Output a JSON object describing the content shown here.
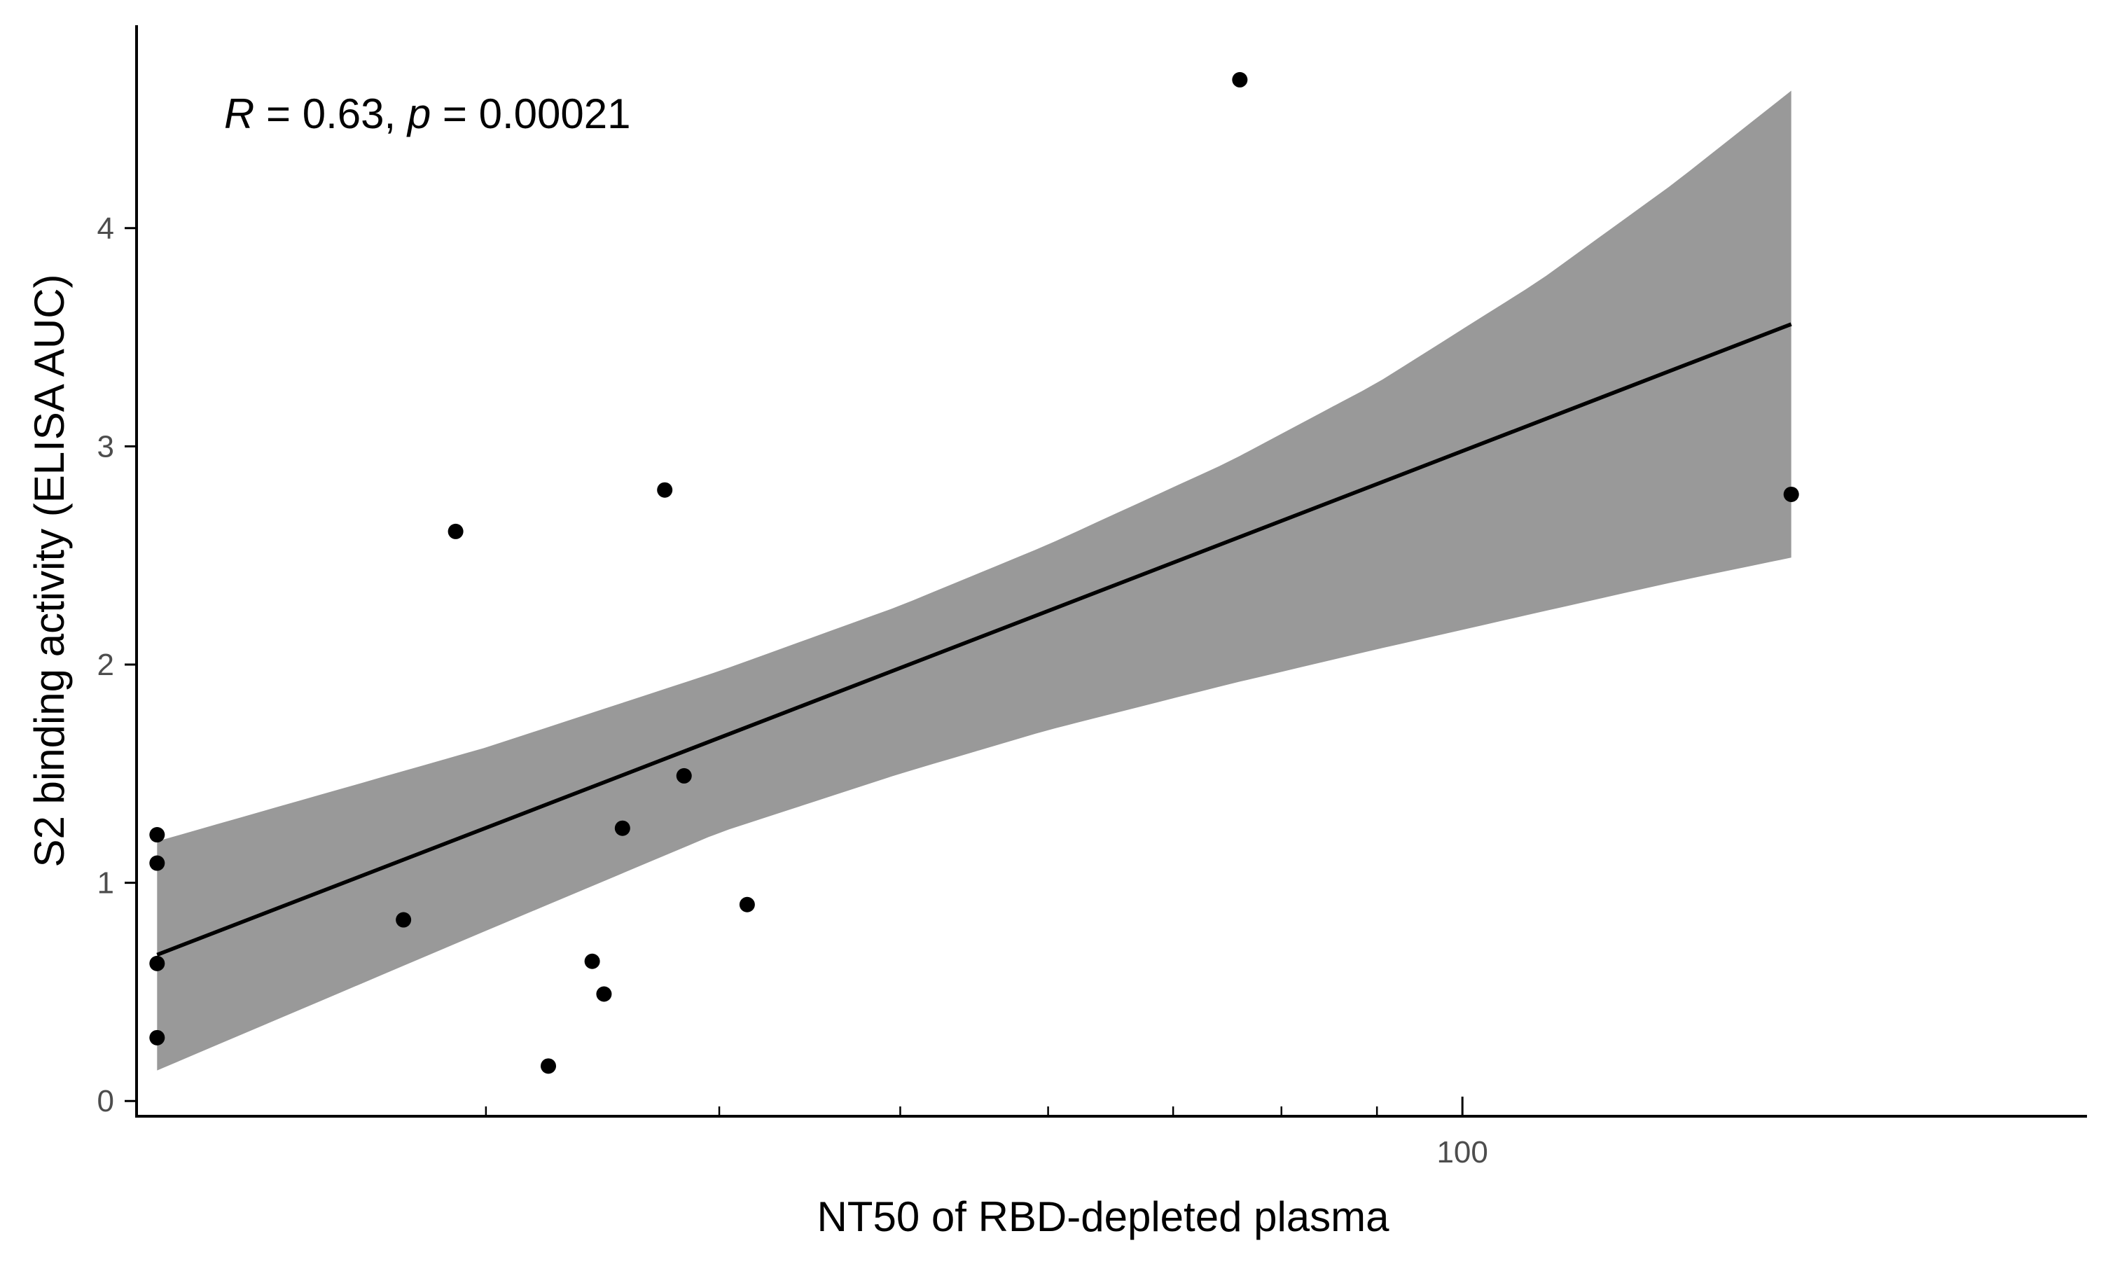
{
  "chart_data": {
    "type": "scatter",
    "xlabel": "NT50 of RBD-depleted plasma",
    "ylabel": "S2 binding activity (ELISA AUC)",
    "x_scale": "log10",
    "xlim": [
      19.5,
      216
    ],
    "ylim": [
      -0.07,
      4.93
    ],
    "x_ticks": [
      {
        "value": 100,
        "label": "100"
      }
    ],
    "x_minor_ticks": [
      30,
      40,
      50,
      60,
      70,
      80,
      90
    ],
    "y_ticks": [
      {
        "value": 0,
        "label": "0"
      },
      {
        "value": 1,
        "label": "1"
      },
      {
        "value": 2,
        "label": "2"
      },
      {
        "value": 3,
        "label": "3"
      },
      {
        "value": 4,
        "label": "4"
      }
    ],
    "grid": false,
    "annotation": {
      "r_label": "R",
      "r_value": " = 0.63, ",
      "p_label": "p",
      "p_value": " = 0.00021"
    },
    "points": [
      {
        "x": 20,
        "y": 1.22
      },
      {
        "x": 20,
        "y": 1.09
      },
      {
        "x": 20,
        "y": 0.63
      },
      {
        "x": 20,
        "y": 0.29
      },
      {
        "x": 27.1,
        "y": 0.83
      },
      {
        "x": 28.9,
        "y": 2.61
      },
      {
        "x": 32.4,
        "y": 0.16
      },
      {
        "x": 34.2,
        "y": 0.64
      },
      {
        "x": 34.7,
        "y": 0.49
      },
      {
        "x": 35.5,
        "y": 1.25
      },
      {
        "x": 37.4,
        "y": 2.8
      },
      {
        "x": 38.3,
        "y": 1.49
      },
      {
        "x": 41.4,
        "y": 0.9
      },
      {
        "x": 76,
        "y": 4.68
      },
      {
        "x": 150,
        "y": 2.78
      }
    ],
    "fit_line": {
      "x": [
        20,
        150
      ],
      "y": [
        0.67,
        3.56
      ]
    },
    "confidence_band": {
      "x": [
        20,
        30,
        40,
        50,
        60,
        75,
        90,
        110,
        130,
        150
      ],
      "upper": [
        1.19,
        1.62,
        1.97,
        2.27,
        2.55,
        2.93,
        3.29,
        3.76,
        4.21,
        4.63
      ],
      "lower": [
        0.14,
        0.78,
        1.23,
        1.5,
        1.7,
        1.91,
        2.07,
        2.24,
        2.38,
        2.49
      ]
    },
    "colors": {
      "points": "#000000",
      "fit_line": "#000000",
      "band": "#999999",
      "axis": "#000000",
      "tick_label": "#4d4d4d"
    }
  }
}
